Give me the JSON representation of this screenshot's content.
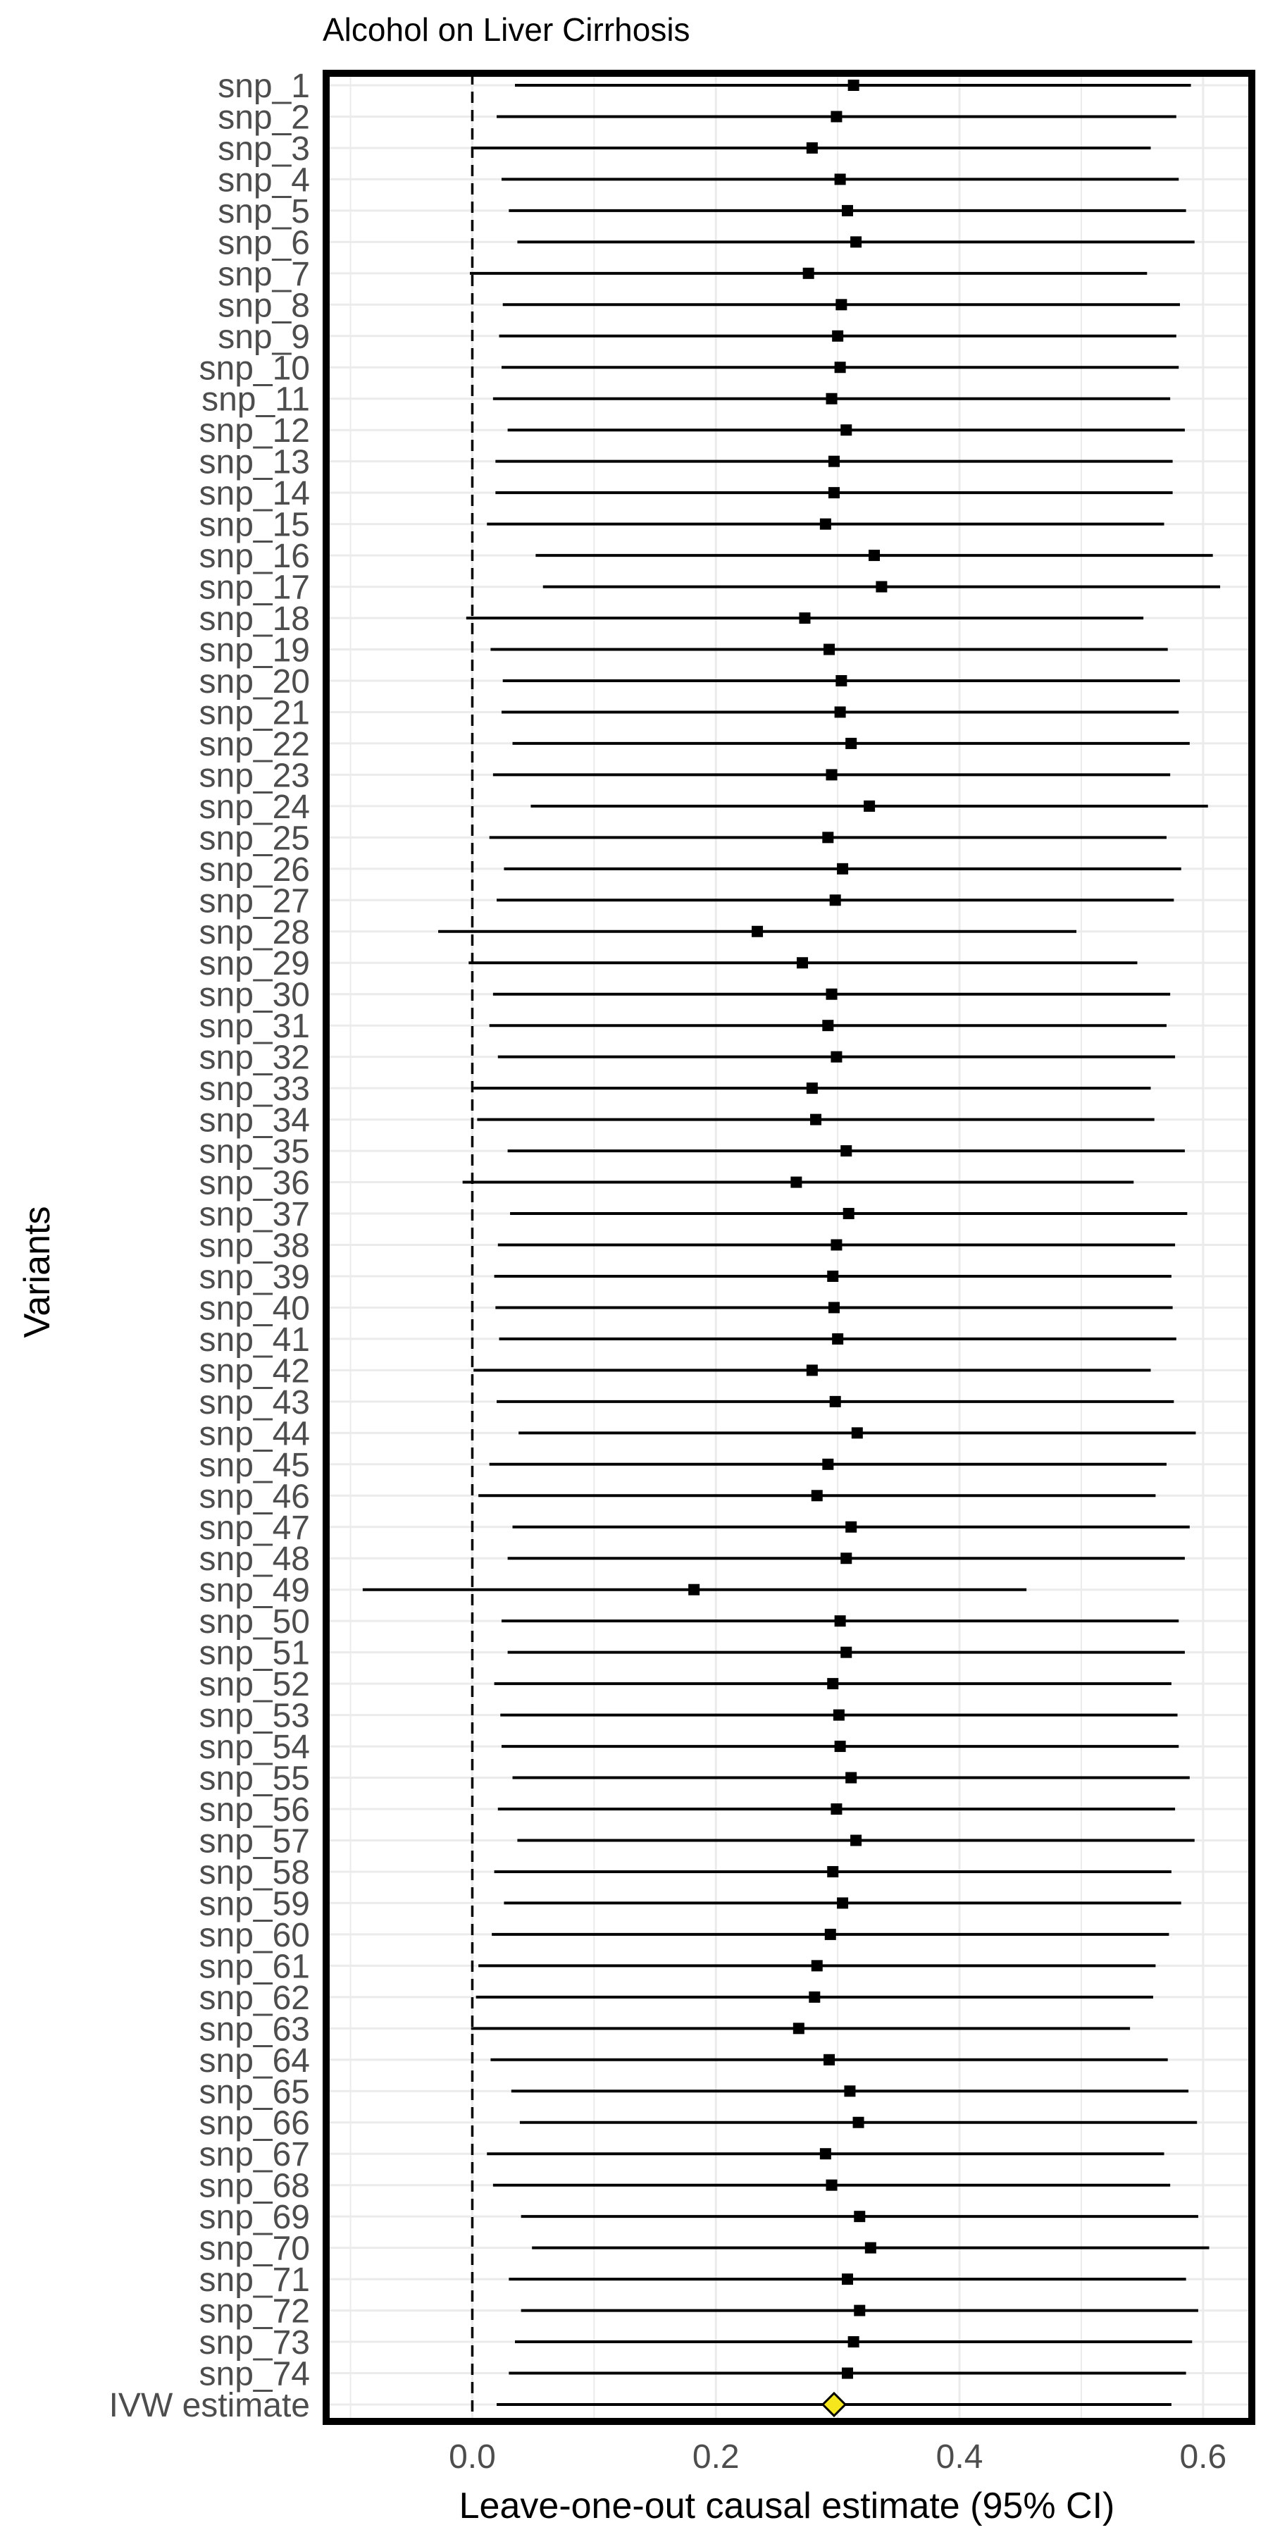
{
  "chart_data": {
    "type": "forest",
    "title": "Alcohol on Liver Cirrhosis",
    "xlabel": "Leave-one-out causal estimate (95% CI)",
    "ylabel": "Variants",
    "xlim": [
      -0.12,
      0.64
    ],
    "xticks": [
      0.0,
      0.2,
      0.4,
      0.6
    ],
    "xtick_labels": [
      "0.0",
      "0.2",
      "0.4",
      "0.6"
    ],
    "reference_line": 0.0,
    "grid": true,
    "colors": {
      "point": "#000000",
      "line": "#000000",
      "summary_fill": "#f5e61e",
      "summary_stroke": "#000000",
      "frame": "#000000",
      "grid": "#ebebeb"
    },
    "rows": [
      {
        "label": "snp_1",
        "estimate": 0.313,
        "lower": 0.035,
        "upper": 0.59
      },
      {
        "label": "snp_2",
        "estimate": 0.299,
        "lower": 0.02,
        "upper": 0.578
      },
      {
        "label": "snp_3",
        "estimate": 0.279,
        "lower": 0.001,
        "upper": 0.557
      },
      {
        "label": "snp_4",
        "estimate": 0.302,
        "lower": 0.024,
        "upper": 0.58
      },
      {
        "label": "snp_5",
        "estimate": 0.308,
        "lower": 0.03,
        "upper": 0.586
      },
      {
        "label": "snp_6",
        "estimate": 0.315,
        "lower": 0.037,
        "upper": 0.593
      },
      {
        "label": "snp_7",
        "estimate": 0.276,
        "lower": -0.002,
        "upper": 0.554
      },
      {
        "label": "snp_8",
        "estimate": 0.303,
        "lower": 0.025,
        "upper": 0.581
      },
      {
        "label": "snp_9",
        "estimate": 0.3,
        "lower": 0.022,
        "upper": 0.578
      },
      {
        "label": "snp_10",
        "estimate": 0.302,
        "lower": 0.024,
        "upper": 0.58
      },
      {
        "label": "snp_11",
        "estimate": 0.295,
        "lower": 0.017,
        "upper": 0.573
      },
      {
        "label": "snp_12",
        "estimate": 0.307,
        "lower": 0.029,
        "upper": 0.585
      },
      {
        "label": "snp_13",
        "estimate": 0.297,
        "lower": 0.019,
        "upper": 0.575
      },
      {
        "label": "snp_14",
        "estimate": 0.297,
        "lower": 0.019,
        "upper": 0.575
      },
      {
        "label": "snp_15",
        "estimate": 0.29,
        "lower": 0.012,
        "upper": 0.568
      },
      {
        "label": "snp_16",
        "estimate": 0.33,
        "lower": 0.052,
        "upper": 0.608
      },
      {
        "label": "snp_17",
        "estimate": 0.336,
        "lower": 0.058,
        "upper": 0.614
      },
      {
        "label": "snp_18",
        "estimate": 0.273,
        "lower": -0.005,
        "upper": 0.551
      },
      {
        "label": "snp_19",
        "estimate": 0.293,
        "lower": 0.015,
        "upper": 0.571
      },
      {
        "label": "snp_20",
        "estimate": 0.303,
        "lower": 0.025,
        "upper": 0.581
      },
      {
        "label": "snp_21",
        "estimate": 0.302,
        "lower": 0.024,
        "upper": 0.58
      },
      {
        "label": "snp_22",
        "estimate": 0.311,
        "lower": 0.033,
        "upper": 0.589
      },
      {
        "label": "snp_23",
        "estimate": 0.295,
        "lower": 0.017,
        "upper": 0.573
      },
      {
        "label": "snp_24",
        "estimate": 0.326,
        "lower": 0.048,
        "upper": 0.604
      },
      {
        "label": "snp_25",
        "estimate": 0.292,
        "lower": 0.014,
        "upper": 0.57
      },
      {
        "label": "snp_26",
        "estimate": 0.304,
        "lower": 0.026,
        "upper": 0.582
      },
      {
        "label": "snp_27",
        "estimate": 0.298,
        "lower": 0.02,
        "upper": 0.576
      },
      {
        "label": "snp_28",
        "estimate": 0.234,
        "lower": -0.028,
        "upper": 0.496
      },
      {
        "label": "snp_29",
        "estimate": 0.271,
        "lower": -0.003,
        "upper": 0.546
      },
      {
        "label": "snp_30",
        "estimate": 0.295,
        "lower": 0.017,
        "upper": 0.573
      },
      {
        "label": "snp_31",
        "estimate": 0.292,
        "lower": 0.014,
        "upper": 0.57
      },
      {
        "label": "snp_32",
        "estimate": 0.299,
        "lower": 0.021,
        "upper": 0.577
      },
      {
        "label": "snp_33",
        "estimate": 0.279,
        "lower": 0.001,
        "upper": 0.557
      },
      {
        "label": "snp_34",
        "estimate": 0.282,
        "lower": 0.004,
        "upper": 0.56
      },
      {
        "label": "snp_35",
        "estimate": 0.307,
        "lower": 0.029,
        "upper": 0.585
      },
      {
        "label": "snp_36",
        "estimate": 0.266,
        "lower": -0.008,
        "upper": 0.543
      },
      {
        "label": "snp_37",
        "estimate": 0.309,
        "lower": 0.031,
        "upper": 0.587
      },
      {
        "label": "snp_38",
        "estimate": 0.299,
        "lower": 0.021,
        "upper": 0.577
      },
      {
        "label": "snp_39",
        "estimate": 0.296,
        "lower": 0.018,
        "upper": 0.574
      },
      {
        "label": "snp_40",
        "estimate": 0.297,
        "lower": 0.019,
        "upper": 0.575
      },
      {
        "label": "snp_41",
        "estimate": 0.3,
        "lower": 0.022,
        "upper": 0.578
      },
      {
        "label": "snp_42",
        "estimate": 0.279,
        "lower": 0.001,
        "upper": 0.557
      },
      {
        "label": "snp_43",
        "estimate": 0.298,
        "lower": 0.02,
        "upper": 0.576
      },
      {
        "label": "snp_44",
        "estimate": 0.316,
        "lower": 0.038,
        "upper": 0.594
      },
      {
        "label": "snp_45",
        "estimate": 0.292,
        "lower": 0.014,
        "upper": 0.57
      },
      {
        "label": "snp_46",
        "estimate": 0.283,
        "lower": 0.005,
        "upper": 0.561
      },
      {
        "label": "snp_47",
        "estimate": 0.311,
        "lower": 0.033,
        "upper": 0.589
      },
      {
        "label": "snp_48",
        "estimate": 0.307,
        "lower": 0.029,
        "upper": 0.585
      },
      {
        "label": "snp_49",
        "estimate": 0.182,
        "lower": -0.09,
        "upper": 0.455
      },
      {
        "label": "snp_50",
        "estimate": 0.302,
        "lower": 0.024,
        "upper": 0.58
      },
      {
        "label": "snp_51",
        "estimate": 0.307,
        "lower": 0.029,
        "upper": 0.585
      },
      {
        "label": "snp_52",
        "estimate": 0.296,
        "lower": 0.018,
        "upper": 0.574
      },
      {
        "label": "snp_53",
        "estimate": 0.301,
        "lower": 0.023,
        "upper": 0.579
      },
      {
        "label": "snp_54",
        "estimate": 0.302,
        "lower": 0.024,
        "upper": 0.58
      },
      {
        "label": "snp_55",
        "estimate": 0.311,
        "lower": 0.033,
        "upper": 0.589
      },
      {
        "label": "snp_56",
        "estimate": 0.299,
        "lower": 0.021,
        "upper": 0.577
      },
      {
        "label": "snp_57",
        "estimate": 0.315,
        "lower": 0.037,
        "upper": 0.593
      },
      {
        "label": "snp_58",
        "estimate": 0.296,
        "lower": 0.018,
        "upper": 0.574
      },
      {
        "label": "snp_59",
        "estimate": 0.304,
        "lower": 0.026,
        "upper": 0.582
      },
      {
        "label": "snp_60",
        "estimate": 0.294,
        "lower": 0.016,
        "upper": 0.572
      },
      {
        "label": "snp_61",
        "estimate": 0.283,
        "lower": 0.005,
        "upper": 0.561
      },
      {
        "label": "snp_62",
        "estimate": 0.281,
        "lower": 0.003,
        "upper": 0.559
      },
      {
        "label": "snp_63",
        "estimate": 0.268,
        "lower": -0.001,
        "upper": 0.54
      },
      {
        "label": "snp_64",
        "estimate": 0.293,
        "lower": 0.015,
        "upper": 0.571
      },
      {
        "label": "snp_65",
        "estimate": 0.31,
        "lower": 0.032,
        "upper": 0.588
      },
      {
        "label": "snp_66",
        "estimate": 0.317,
        "lower": 0.039,
        "upper": 0.595
      },
      {
        "label": "snp_67",
        "estimate": 0.29,
        "lower": 0.012,
        "upper": 0.568
      },
      {
        "label": "snp_68",
        "estimate": 0.295,
        "lower": 0.017,
        "upper": 0.573
      },
      {
        "label": "snp_69",
        "estimate": 0.318,
        "lower": 0.04,
        "upper": 0.596
      },
      {
        "label": "snp_70",
        "estimate": 0.327,
        "lower": 0.049,
        "upper": 0.605
      },
      {
        "label": "snp_71",
        "estimate": 0.308,
        "lower": 0.03,
        "upper": 0.586
      },
      {
        "label": "snp_72",
        "estimate": 0.318,
        "lower": 0.04,
        "upper": 0.596
      },
      {
        "label": "snp_73",
        "estimate": 0.313,
        "lower": 0.035,
        "upper": 0.591
      },
      {
        "label": "snp_74",
        "estimate": 0.308,
        "lower": 0.03,
        "upper": 0.586
      },
      {
        "label": "IVW estimate",
        "estimate": 0.297,
        "lower": 0.02,
        "upper": 0.574,
        "summary": true
      }
    ]
  }
}
